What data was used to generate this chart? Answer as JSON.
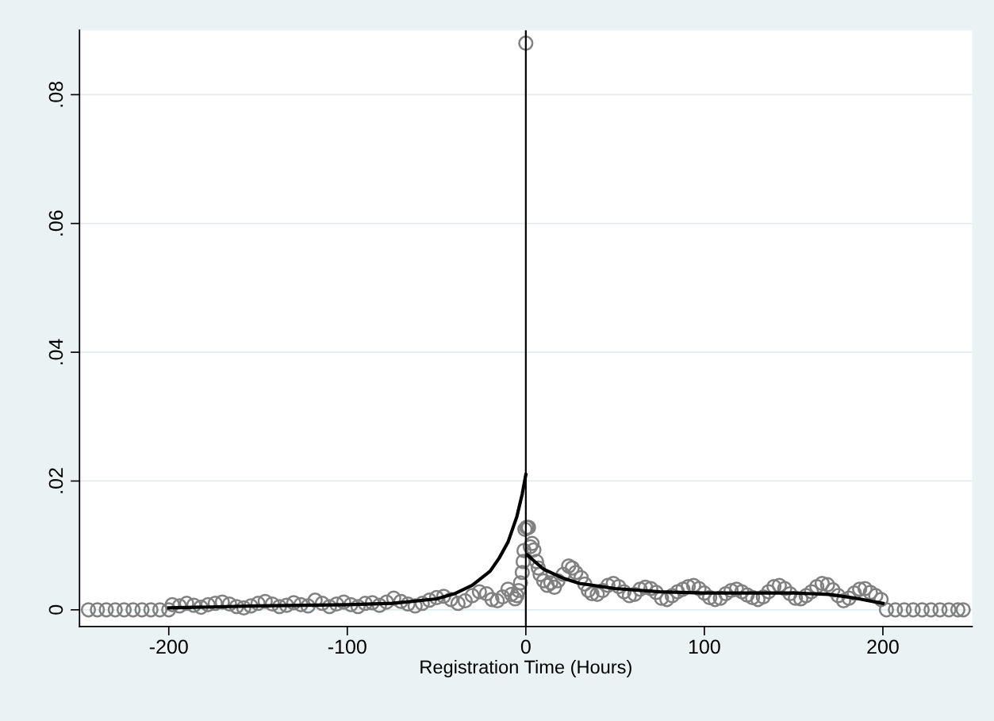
{
  "chart_data": {
    "type": "scatter",
    "xlabel": "Registration Time (Hours)",
    "xlim": [
      -250,
      250
    ],
    "xticks": [
      -200,
      -100,
      0,
      100,
      200
    ],
    "ylim": [
      -0.0026,
      0.09
    ],
    "yticks": [
      {
        "value": 0,
        "label": "0"
      },
      {
        "value": 0.02,
        "label": ".02"
      },
      {
        "value": 0.04,
        "label": ".04"
      },
      {
        "value": 0.06,
        "label": ".06"
      },
      {
        "value": 0.08,
        "label": ".08"
      }
    ],
    "grid": "y",
    "legend": false,
    "marker": "circle",
    "ref_lines": [
      {
        "axis": "x",
        "value": 0,
        "color": "#000000",
        "line_style": "solid"
      }
    ],
    "series": [
      {
        "color": "#808080",
        "x": [
          -245,
          -240,
          -235,
          -230,
          -225,
          -220,
          -215,
          -210,
          -205,
          -200,
          -198,
          -194,
          -190,
          -186,
          -182,
          -178,
          -174,
          -170,
          -166,
          -162,
          -158,
          -154,
          -150,
          -146,
          -142,
          -138,
          -134,
          -130,
          -126,
          -122,
          -118,
          -114,
          -110,
          -106,
          -102,
          -98,
          -94,
          -90,
          -86,
          -82,
          -78,
          -74,
          -70,
          -66,
          -62,
          -58,
          -54,
          -50,
          -46,
          -42,
          -38,
          -34,
          -30,
          -26,
          -22,
          -19,
          -16,
          -13,
          -10,
          -8,
          -6,
          -5,
          -4,
          -3,
          -2,
          -1.5,
          -1,
          -0.5,
          0,
          0.5,
          1.5,
          2.5,
          3.5,
          4.5,
          6,
          7,
          8,
          10,
          12,
          14,
          16,
          18,
          21,
          24,
          26,
          28,
          31,
          33,
          35,
          37,
          40,
          43,
          46,
          49,
          52,
          55,
          58,
          61,
          64,
          67,
          70,
          73,
          76,
          79,
          82,
          85,
          88,
          91,
          94,
          97,
          100,
          103,
          106,
          109,
          112,
          115,
          118,
          121,
          124,
          127,
          130,
          133,
          136,
          139,
          142,
          145,
          148,
          151,
          154,
          157,
          160,
          163,
          166,
          169,
          172,
          175,
          178,
          181,
          184,
          187,
          190,
          193,
          196,
          199,
          202,
          207,
          212,
          217,
          222,
          227,
          232,
          237,
          242,
          245
        ],
        "values": [
          0,
          0,
          0,
          0,
          0,
          0,
          0,
          0,
          0,
          0,
          0.0008,
          0.0006,
          0.001,
          0.0007,
          0.0004,
          0.0008,
          0.001,
          0.0012,
          0.0009,
          0.0005,
          0.0003,
          0.0006,
          0.001,
          0.0013,
          0.0009,
          0.0005,
          0.0007,
          0.0011,
          0.0008,
          0.0006,
          0.0015,
          0.001,
          0.0005,
          0.0009,
          0.0012,
          0.0008,
          0.0005,
          0.001,
          0.0011,
          0.0007,
          0.0012,
          0.0018,
          0.0013,
          0.0009,
          0.0006,
          0.001,
          0.0015,
          0.0019,
          0.0021,
          0.0016,
          0.001,
          0.0014,
          0.0022,
          0.0028,
          0.0025,
          0.0016,
          0.0014,
          0.002,
          0.0032,
          0.0024,
          0.0017,
          0.0022,
          0.003,
          0.0042,
          0.0058,
          0.0075,
          0.0092,
          0.0125,
          0.088,
          0.0128,
          0.0128,
          0.0098,
          0.0103,
          0.0093,
          0.0075,
          0.0065,
          0.0055,
          0.0045,
          0.0038,
          0.0042,
          0.0035,
          0.0045,
          0.0055,
          0.0068,
          0.0065,
          0.0058,
          0.005,
          0.004,
          0.003,
          0.0025,
          0.0024,
          0.003,
          0.0038,
          0.0041,
          0.0036,
          0.0028,
          0.0022,
          0.0024,
          0.0032,
          0.0035,
          0.0033,
          0.0027,
          0.0018,
          0.0016,
          0.0022,
          0.0028,
          0.0032,
          0.0036,
          0.0038,
          0.0033,
          0.0026,
          0.0019,
          0.0016,
          0.0018,
          0.0025,
          0.003,
          0.0032,
          0.0028,
          0.0023,
          0.0019,
          0.0016,
          0.002,
          0.0028,
          0.0036,
          0.0038,
          0.0033,
          0.0025,
          0.0018,
          0.0017,
          0.0022,
          0.0028,
          0.0036,
          0.0041,
          0.0039,
          0.0031,
          0.0022,
          0.0014,
          0.0018,
          0.0026,
          0.0032,
          0.0033,
          0.0027,
          0.0022,
          0.0016,
          0,
          0,
          0,
          0,
          0,
          0,
          0,
          0,
          0,
          0
        ]
      },
      {
        "type": "line",
        "color": "#000000",
        "marker": "none",
        "line_style": "solid",
        "x": [
          -200,
          -150,
          -100,
          -75,
          -50,
          -40,
          -30,
          -20,
          -15,
          -10,
          -5,
          -2,
          0
        ],
        "values": [
          0.0003,
          0.0006,
          0.0008,
          0.001,
          0.0017,
          0.0025,
          0.0038,
          0.006,
          0.008,
          0.0105,
          0.0145,
          0.018,
          0.021
        ]
      },
      {
        "type": "line",
        "color": "#000000",
        "marker": "none",
        "line_style": "solid",
        "x": [
          1,
          5,
          10,
          20,
          30,
          50,
          75,
          100,
          125,
          150,
          170,
          185,
          200
        ],
        "values": [
          0.0085,
          0.0075,
          0.0063,
          0.005,
          0.0041,
          0.0033,
          0.0028,
          0.0026,
          0.0026,
          0.0026,
          0.0024,
          0.0018,
          0.001
        ]
      }
    ]
  }
}
